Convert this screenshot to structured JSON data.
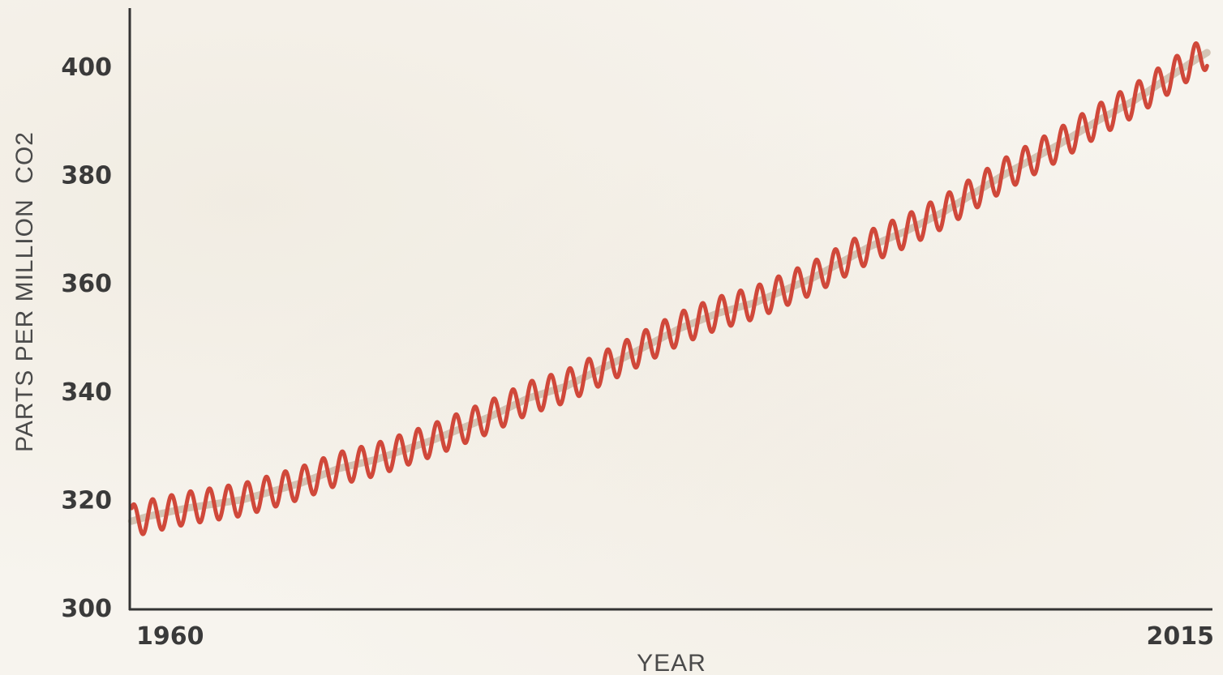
{
  "chart_data": {
    "type": "line",
    "title": "",
    "xlabel": "YEAR",
    "ylabel": "PARTS PER MILLION  CO2",
    "x_tick_labels": [
      "1960",
      "2015"
    ],
    "y_tick_labels": [
      "300",
      "320",
      "340",
      "360",
      "380",
      "400"
    ],
    "xlim": [
      1959,
      2016
    ],
    "ylim": [
      300,
      410
    ],
    "grid": false,
    "legend": "none",
    "colors": {
      "line": "#d0483a",
      "trend": "#c9b8a6",
      "axis": "#333333"
    },
    "series": [
      {
        "seasonal_amplitude_ppm": 3,
        "x": [
          1959,
          1960,
          1962,
          1965,
          1968,
          1970,
          1972,
          1975,
          1978,
          1980,
          1982,
          1985,
          1988,
          1990,
          1992,
          1995,
          1998,
          2000,
          2002,
          2005,
          2008,
          2010,
          2012,
          2015,
          2016
        ],
        "values": [
          315.9,
          316.9,
          318.4,
          320.0,
          323.0,
          325.7,
          327.4,
          331.0,
          335.3,
          338.7,
          340.9,
          346.1,
          351.6,
          354.4,
          356.4,
          360.9,
          366.7,
          369.7,
          373.3,
          379.8,
          385.6,
          389.9,
          393.8,
          400.8,
          403.0
        ]
      }
    ]
  }
}
